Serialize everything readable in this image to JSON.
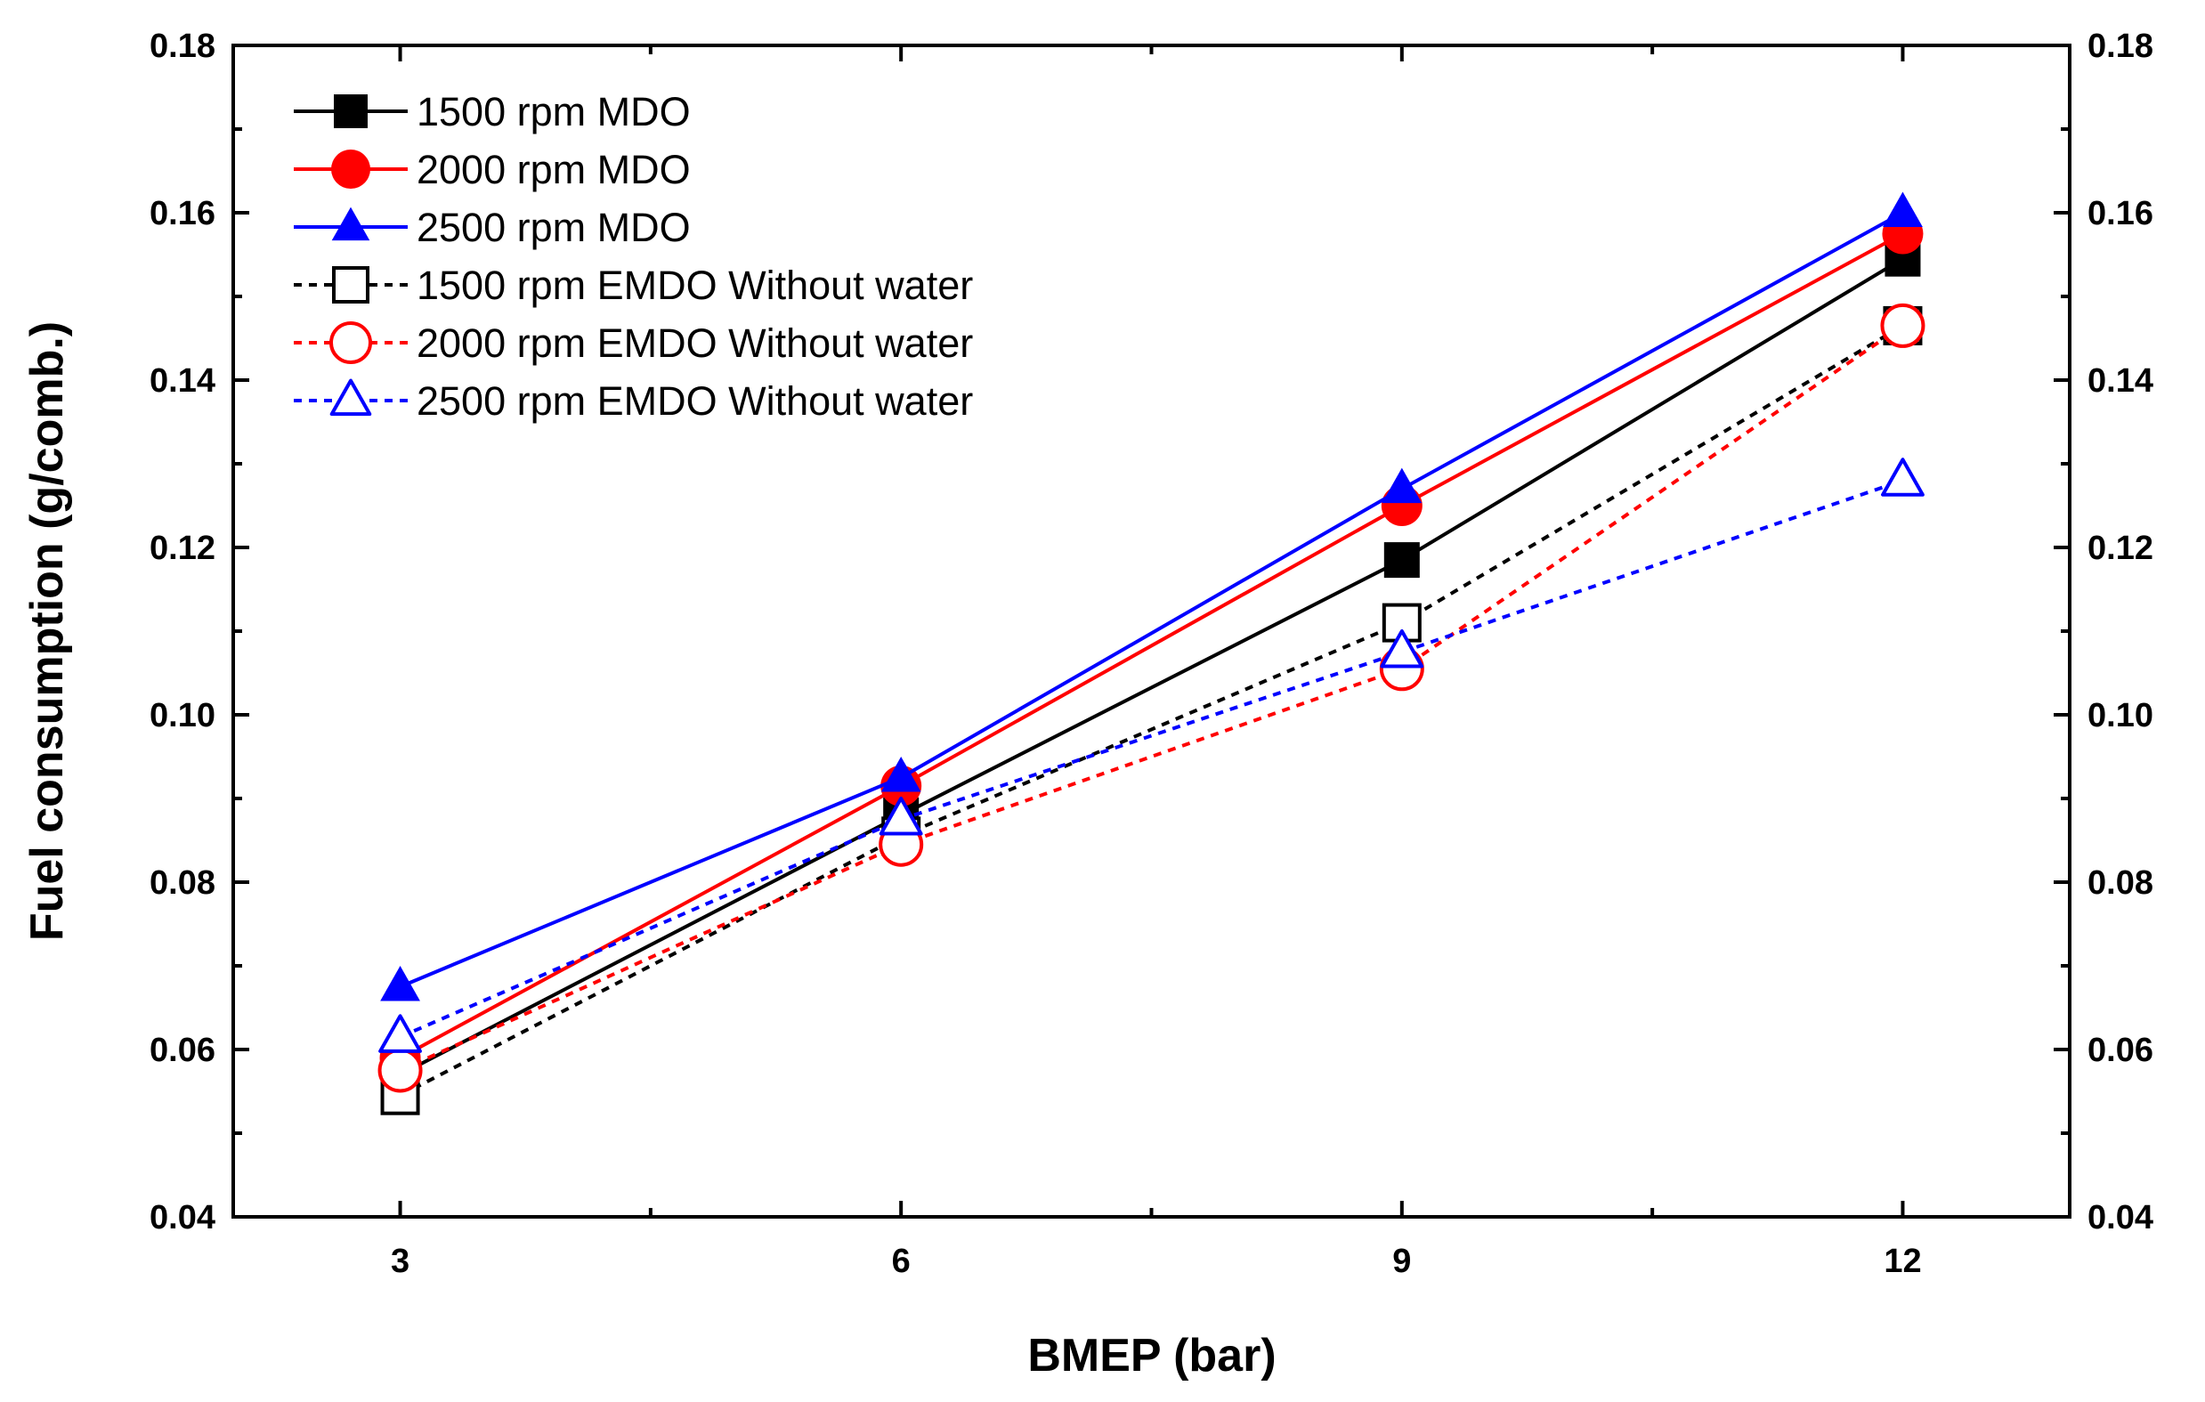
{
  "chart_data": {
    "type": "line",
    "xlabel": "BMEP (bar)",
    "ylabel": "Fuel consumption (g/comb.)",
    "x": [
      3,
      6,
      9,
      12
    ],
    "xlim": [
      2,
      13
    ],
    "xticks": [
      3,
      6,
      9,
      12
    ],
    "xtick_labels": [
      "3",
      "6",
      "9",
      "12"
    ],
    "ylim": [
      0.04,
      0.18
    ],
    "yticks": [
      0.04,
      0.06,
      0.08,
      0.1,
      0.12,
      0.14,
      0.16,
      0.18
    ],
    "ytick_labels": [
      "0.04",
      "0.06",
      "0.08",
      "0.10",
      "0.12",
      "0.14",
      "0.16",
      "0.18"
    ],
    "right_axis": true,
    "grid": false,
    "legend_position": "top-left",
    "series": [
      {
        "name": "1500 rpm MDO",
        "values": [
          0.057,
          0.088,
          0.1185,
          0.1545
        ],
        "color": "#000000",
        "dash": "solid",
        "marker": "square",
        "filled": true
      },
      {
        "name": "2000 rpm MDO",
        "values": [
          0.059,
          0.0915,
          0.125,
          0.1575
        ],
        "color": "#ff0000",
        "dash": "solid",
        "marker": "circle",
        "filled": true
      },
      {
        "name": "2500 rpm MDO",
        "values": [
          0.0675,
          0.0925,
          0.127,
          0.16
        ],
        "color": "#0000ff",
        "dash": "solid",
        "marker": "triangle",
        "filled": true
      },
      {
        "name": "1500 rpm EMDO Without water",
        "values": [
          0.0545,
          0.0855,
          0.111,
          0.1465
        ],
        "color": "#000000",
        "dash": "dot",
        "marker": "square",
        "filled": false
      },
      {
        "name": "2000 rpm EMDO Without water",
        "values": [
          0.0575,
          0.0845,
          0.1055,
          0.1465
        ],
        "color": "#ff0000",
        "dash": "dot",
        "marker": "circle",
        "filled": false
      },
      {
        "name": "2500 rpm EMDO Without water",
        "values": [
          0.0615,
          0.0875,
          0.1075,
          0.128
        ],
        "color": "#0000ff",
        "dash": "dot",
        "marker": "triangle",
        "filled": false
      }
    ]
  }
}
